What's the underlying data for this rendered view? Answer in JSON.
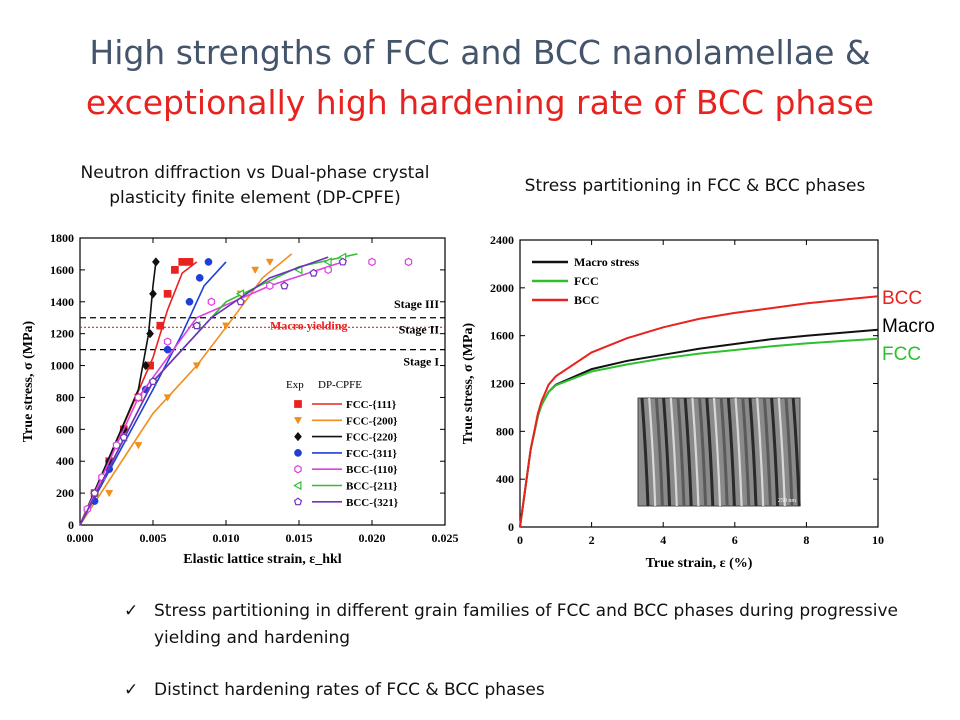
{
  "slide": {
    "title_line1": "High strengths of FCC and BCC nanolamellae &",
    "title_line2": "exceptionally high hardening rate of BCC phase",
    "title_line1_color": "#44546a",
    "title_line2_color": "#e8231f",
    "caption_left": "Neutron diffraction vs Dual-phase crystal plasticity finite element (DP-CPFE)",
    "caption_right": "Stress partitioning in FCC & BCC phases",
    "bullets": [
      "Stress partitioning in different grain families of FCC and BCC phases during progressive yielding and hardening",
      "Distinct hardening rates of FCC & BCC phases"
    ],
    "bullet_icon": "check-icon"
  },
  "chart_data": [
    {
      "type": "scatter",
      "xlabel": "Elastic lattice strain, ε_hkl",
      "ylabel": "True stress, σ (MPa)",
      "xlim": [
        0,
        0.025
      ],
      "ylim": [
        0,
        1800
      ],
      "xticks": [
        "0.000",
        "0.005",
        "0.010",
        "0.015",
        "0.020",
        "0.025"
      ],
      "yticks": [
        "0",
        "200",
        "400",
        "600",
        "800",
        "1000",
        "1200",
        "1400",
        "1600",
        "1800"
      ],
      "legend_header_exp": "Exp",
      "legend_header_sim": "DP-CPFE",
      "legend_position": "bottom-right",
      "annotations": [
        {
          "text": "Stage III",
          "y": 1360
        },
        {
          "text": "Stage II",
          "y": 1200
        },
        {
          "text": "Stage I",
          "y": 1000
        },
        {
          "text": "Macro yielding",
          "y": 1250
        }
      ],
      "hlines": [
        {
          "y": 1300,
          "style": "dashed",
          "color": "#000000"
        },
        {
          "y": 1100,
          "style": "dashed",
          "color": "#000000"
        },
        {
          "y": 1240,
          "style": "dotted",
          "color": "#e8231f"
        }
      ],
      "series": [
        {
          "name": "FCC-{111}",
          "color": "#e8231f",
          "marker": "square",
          "x": [
            0.001,
            0.002,
            0.003,
            0.004,
            0.0048,
            0.0055,
            0.006,
            0.0065,
            0.007,
            0.0075
          ],
          "y": [
            200,
            400,
            600,
            800,
            1000,
            1250,
            1450,
            1600,
            1650,
            1650
          ],
          "model_x": [
            0.0,
            0.005,
            0.006,
            0.007,
            0.008
          ],
          "model_y": [
            0,
            1050,
            1350,
            1580,
            1650
          ]
        },
        {
          "name": "FCC-{200}",
          "color": "#f28e1c",
          "marker": "triangle-down",
          "x": [
            0.002,
            0.004,
            0.006,
            0.008,
            0.01,
            0.011,
            0.012,
            0.013
          ],
          "y": [
            200,
            500,
            800,
            1000,
            1250,
            1450,
            1600,
            1650
          ],
          "model_x": [
            0.0,
            0.005,
            0.008,
            0.0105,
            0.0125,
            0.0145
          ],
          "model_y": [
            0,
            700,
            1000,
            1300,
            1550,
            1700
          ]
        },
        {
          "name": "FCC-{220}",
          "color": "#111111",
          "marker": "diamond",
          "x": [
            0.001,
            0.002,
            0.003,
            0.004,
            0.0045,
            0.0048,
            0.005,
            0.0052
          ],
          "y": [
            200,
            400,
            600,
            800,
            1000,
            1200,
            1450,
            1650
          ],
          "model_x": [
            0.0,
            0.004,
            0.0047,
            0.005,
            0.0052
          ],
          "model_y": [
            0,
            850,
            1200,
            1500,
            1650
          ]
        },
        {
          "name": "FCC-{311}",
          "color": "#1f3fd6",
          "marker": "circle",
          "x": [
            0.001,
            0.002,
            0.003,
            0.0045,
            0.006,
            0.0075,
            0.0082,
            0.0088
          ],
          "y": [
            150,
            350,
            550,
            850,
            1100,
            1400,
            1550,
            1650
          ],
          "model_x": [
            0.0,
            0.005,
            0.007,
            0.0085,
            0.01
          ],
          "model_y": [
            0,
            850,
            1200,
            1500,
            1650
          ]
        },
        {
          "name": "BCC-{110}",
          "color": "#e040e0",
          "marker": "hexagon",
          "x": [
            0.0005,
            0.0015,
            0.0025,
            0.004,
            0.006,
            0.009,
            0.013,
            0.017,
            0.02,
            0.0225
          ],
          "y": [
            100,
            300,
            500,
            800,
            1150,
            1400,
            1500,
            1600,
            1650,
            1650
          ],
          "model_x": [
            0.0,
            0.004,
            0.008,
            0.013,
            0.018
          ],
          "model_y": [
            0,
            800,
            1300,
            1500,
            1650
          ]
        },
        {
          "name": "BCC-{211}",
          "color": "#2ec02e",
          "marker": "triangle-left",
          "x": [
            0.001,
            0.003,
            0.005,
            0.008,
            0.011,
            0.015,
            0.017,
            0.018
          ],
          "y": [
            200,
            550,
            900,
            1250,
            1450,
            1600,
            1650,
            1680
          ],
          "model_x": [
            0.0,
            0.005,
            0.01,
            0.015,
            0.019
          ],
          "model_y": [
            0,
            900,
            1400,
            1620,
            1700
          ]
        },
        {
          "name": "BCC-{321}",
          "color": "#7030c0",
          "marker": "pentagon",
          "x": [
            0.001,
            0.003,
            0.005,
            0.008,
            0.011,
            0.014,
            0.016,
            0.018
          ],
          "y": [
            200,
            550,
            900,
            1250,
            1400,
            1500,
            1580,
            1650
          ],
          "model_x": [
            0.0,
            0.005,
            0.009,
            0.013,
            0.017
          ],
          "model_y": [
            0,
            900,
            1300,
            1550,
            1680
          ]
        }
      ]
    },
    {
      "type": "line",
      "xlabel": "True strain, ε (%)",
      "ylabel": "True stress, σ (MPa)",
      "xlim": [
        0,
        10
      ],
      "ylim": [
        0,
        2400
      ],
      "xticks": [
        "0",
        "2",
        "4",
        "6",
        "8",
        "10"
      ],
      "yticks": [
        "0",
        "400",
        "800",
        "1200",
        "1600",
        "2000",
        "2400"
      ],
      "legend_position": "top-left",
      "inset": {
        "label": "micrograph",
        "scale_bar_text": "250 nm"
      },
      "end_labels": [
        {
          "text": "BCC",
          "color": "#e8231f"
        },
        {
          "text": "Macro",
          "color": "#000000"
        },
        {
          "text": "FCC",
          "color": "#2ec02e"
        }
      ],
      "series": [
        {
          "name": "Macro stress",
          "color": "#111111",
          "x": [
            0,
            0.3,
            0.5,
            0.6,
            0.8,
            1,
            2,
            3,
            4,
            5,
            6,
            7,
            8,
            9,
            10
          ],
          "y": [
            0,
            650,
            930,
            1020,
            1130,
            1190,
            1320,
            1390,
            1440,
            1490,
            1530,
            1570,
            1600,
            1625,
            1650
          ]
        },
        {
          "name": "FCC",
          "color": "#2ec02e",
          "x": [
            0,
            0.3,
            0.5,
            0.6,
            0.8,
            1,
            2,
            3,
            4,
            5,
            6,
            7,
            8,
            9,
            10
          ],
          "y": [
            0,
            650,
            930,
            1020,
            1130,
            1185,
            1300,
            1360,
            1410,
            1450,
            1480,
            1510,
            1535,
            1555,
            1575
          ]
        },
        {
          "name": "BCC",
          "color": "#e8231f",
          "x": [
            0,
            0.3,
            0.5,
            0.6,
            0.8,
            1,
            2,
            3,
            4,
            5,
            6,
            7,
            8,
            9,
            10
          ],
          "y": [
            0,
            650,
            950,
            1050,
            1190,
            1260,
            1460,
            1580,
            1670,
            1740,
            1790,
            1830,
            1870,
            1900,
            1930
          ]
        }
      ]
    }
  ]
}
